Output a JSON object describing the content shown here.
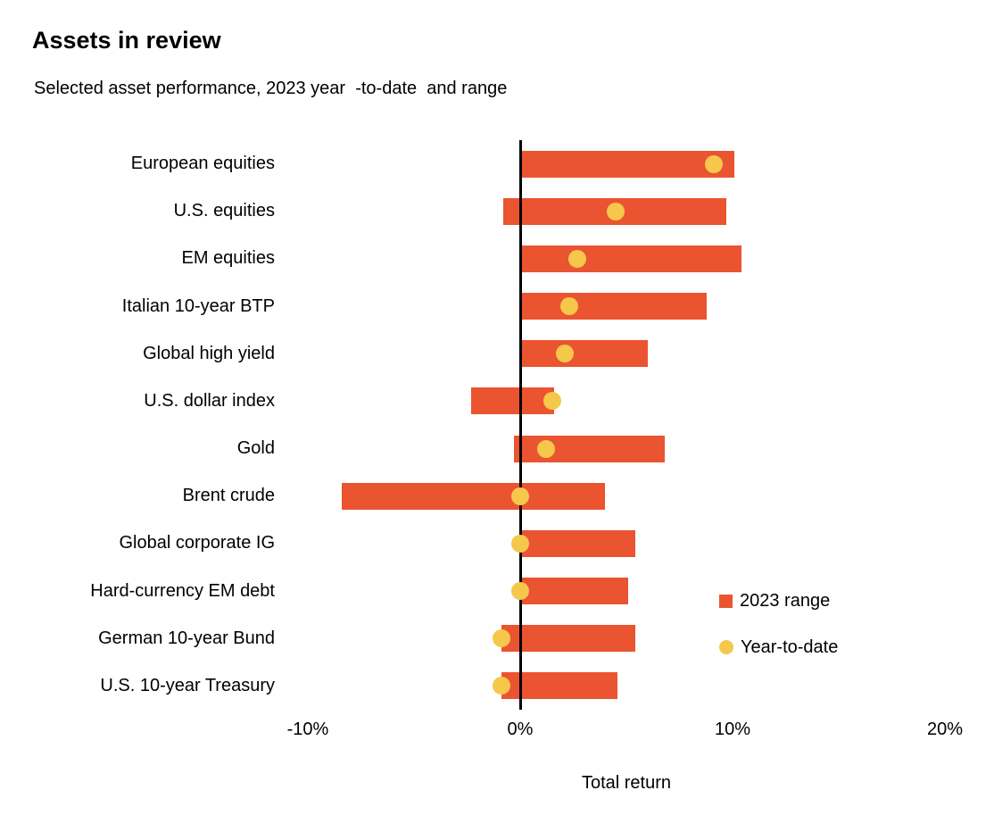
{
  "header": {
    "title": "Assets in review",
    "subtitle": "Selected asset performance, 2023 year  -to-date  and range"
  },
  "chart_data": {
    "type": "bar",
    "orientation": "horizontal",
    "title": "Assets in review",
    "subtitle": "Selected asset performance, 2023 year-to-date and range",
    "xlabel": "Total return",
    "xlim": [
      -10,
      20
    ],
    "grid": false,
    "zero_axis_line": true,
    "categories": [
      "European equities",
      "U.S. equities",
      "EM equities",
      "Italian 10-year BTP",
      "Global high yield",
      "U.S. dollar index",
      "Gold",
      "Brent crude",
      "Global corporate IG",
      "Hard-currency EM debt",
      "German 10-year Bund",
      "U.S. 10-year Treasury"
    ],
    "series": [
      {
        "name": "2023 range",
        "type": "range_bar",
        "color": "#EA5430",
        "low": [
          0.1,
          -0.8,
          0.1,
          0.1,
          0.1,
          -2.3,
          -0.3,
          -8.4,
          0.1,
          0.1,
          -0.9,
          -0.9
        ],
        "high": [
          10.1,
          9.7,
          10.4,
          8.8,
          6.0,
          1.6,
          6.8,
          4.0,
          5.4,
          5.1,
          5.4,
          4.6
        ]
      },
      {
        "name": "Year-to-date",
        "type": "dot",
        "color": "#F5C84B",
        "values": [
          9.1,
          4.5,
          2.7,
          2.3,
          2.1,
          1.5,
          1.2,
          0.0,
          0.0,
          0.0,
          -0.9,
          -0.9
        ]
      }
    ],
    "x_ticks": [
      {
        "value": -10,
        "label": "-10%"
      },
      {
        "value": 0,
        "label": "0%"
      },
      {
        "value": 10,
        "label": "10%"
      },
      {
        "value": 20,
        "label": "20%"
      }
    ],
    "legend": {
      "position": "right-middle",
      "items": [
        {
          "label": "2023 range",
          "marker": "square",
          "color": "#EA5430"
        },
        {
          "label": "Year-to-date",
          "marker": "circle",
          "color": "#F5C84B"
        }
      ]
    }
  },
  "colors": {
    "range_bar": "#EA5430",
    "ytd_dot": "#F5C84B",
    "axis_line": "#000000",
    "text": "#000000",
    "background": "#ffffff"
  }
}
